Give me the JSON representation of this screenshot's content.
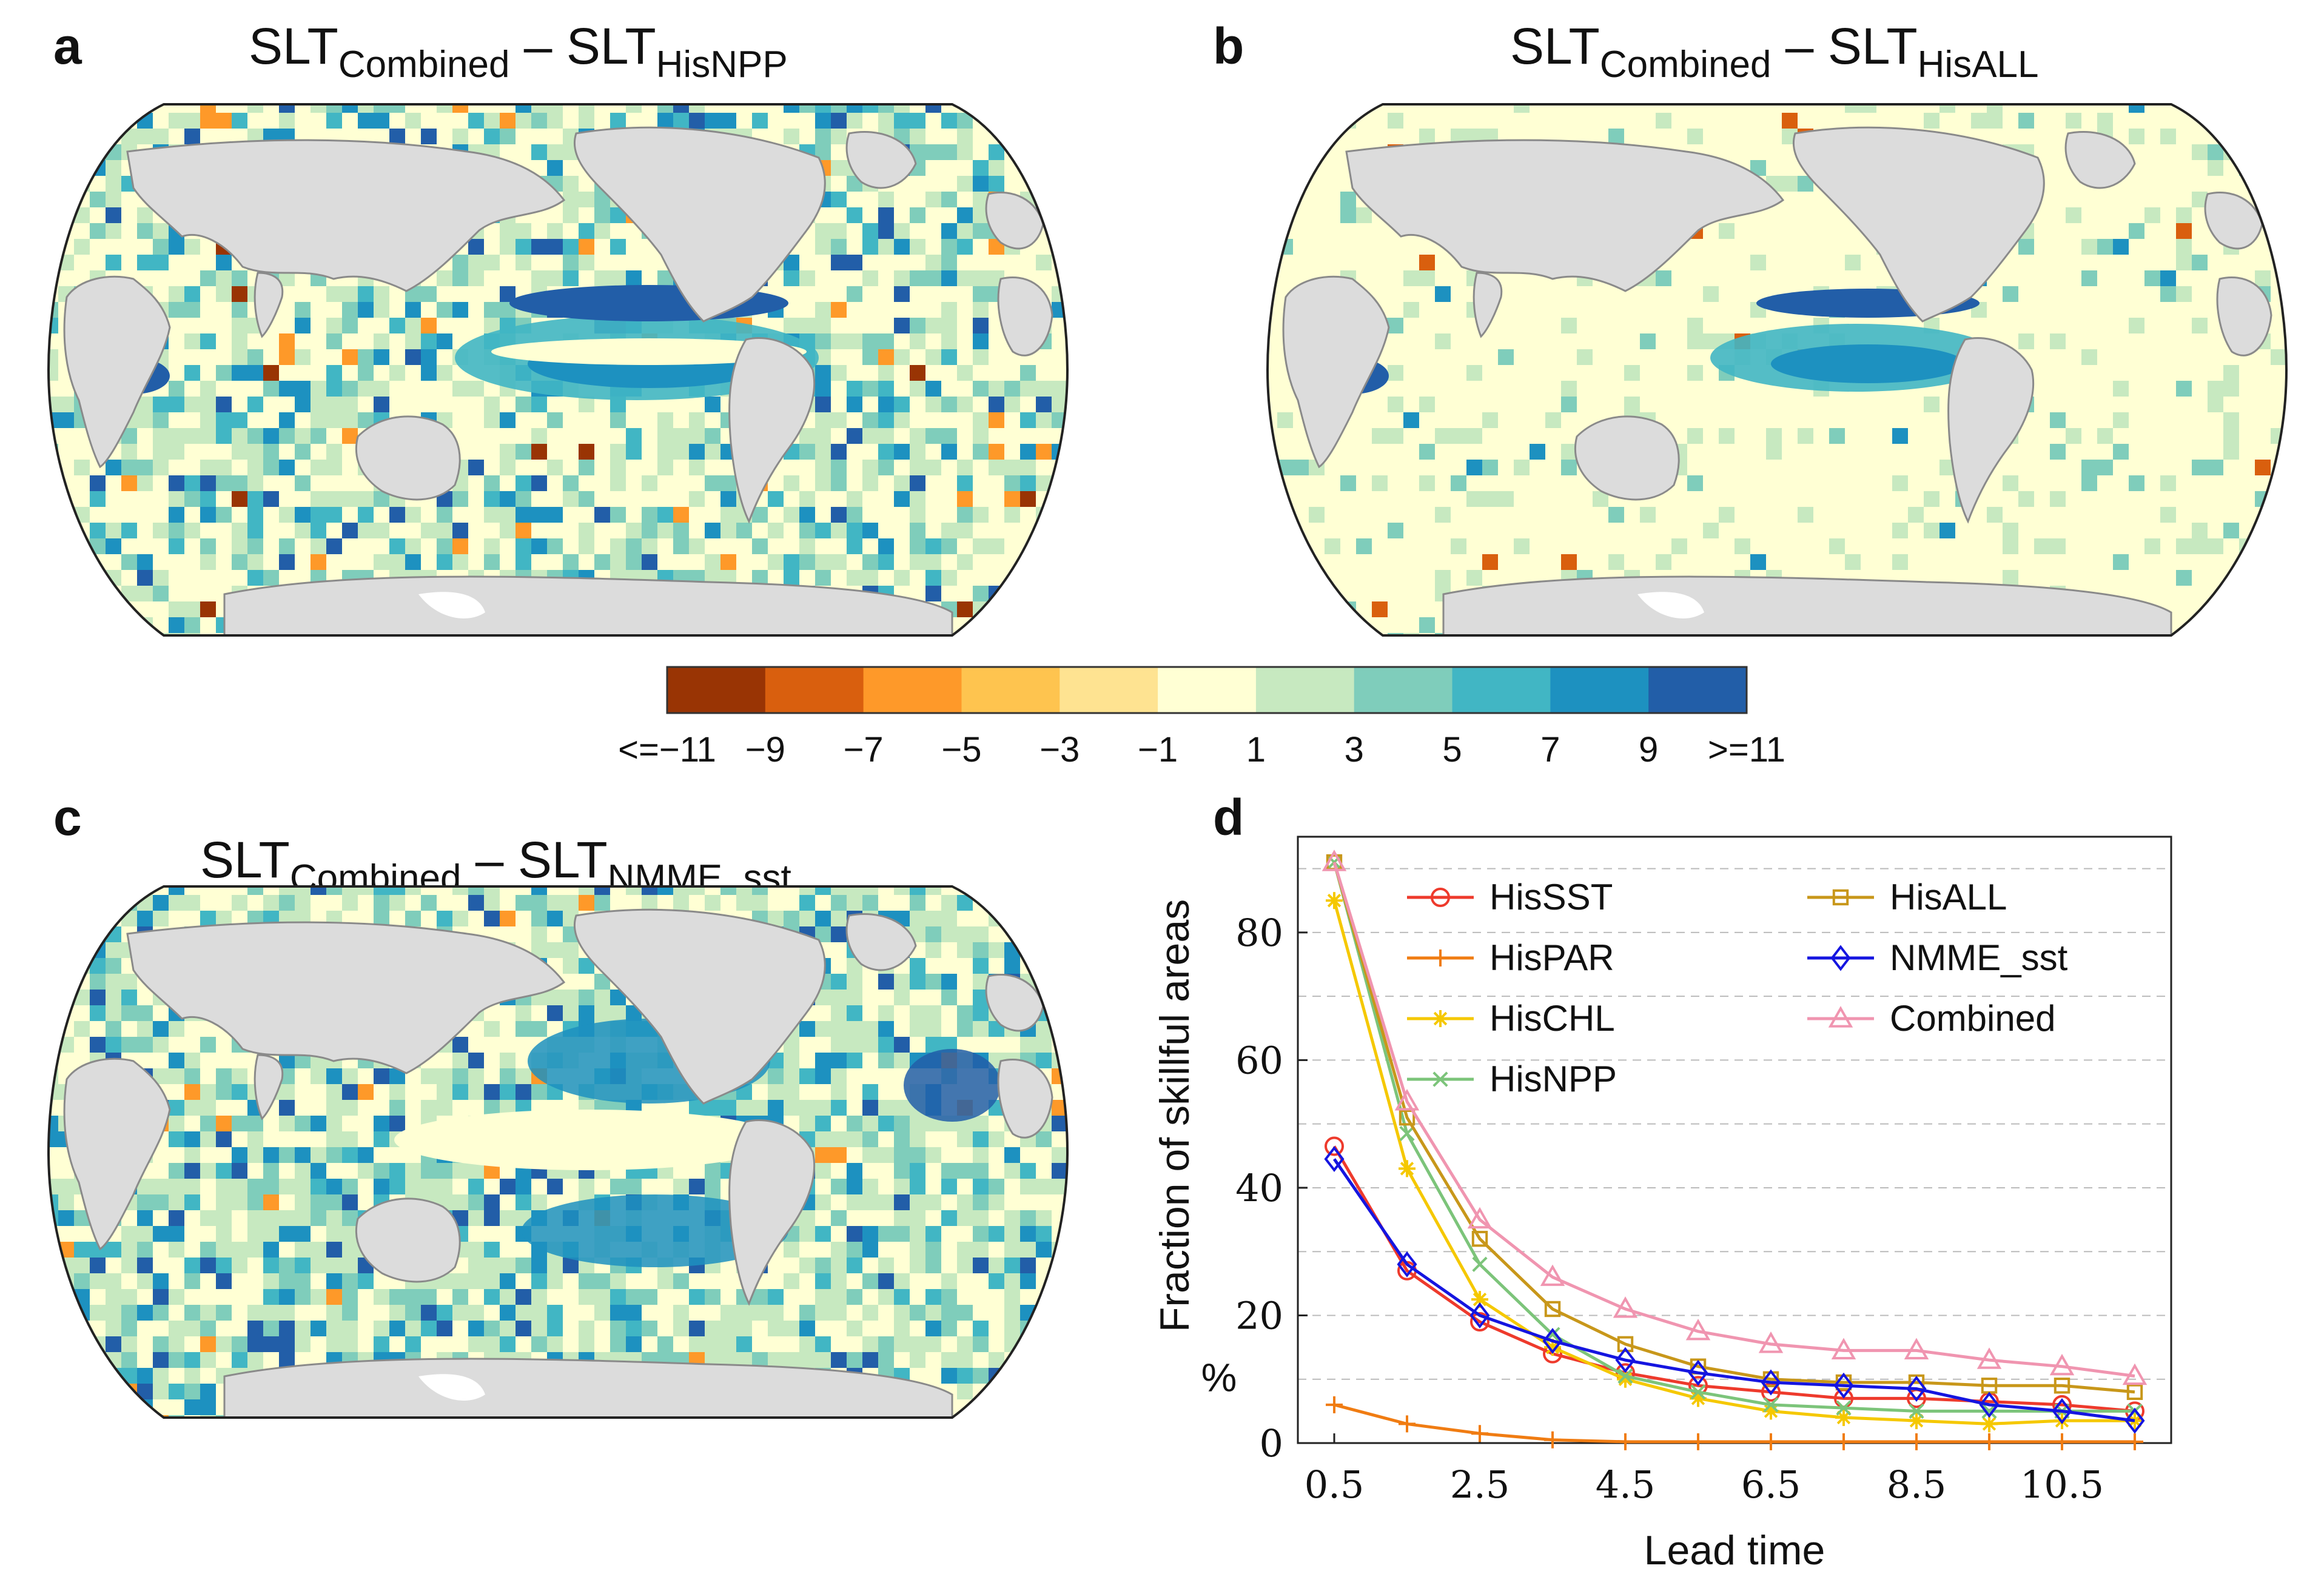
{
  "panels": {
    "a": {
      "letter": "a",
      "title_main": "SLT",
      "title_sub1": "Combined",
      "title_dash": " – SLT",
      "title_sub2": "HisNPP"
    },
    "b": {
      "letter": "b",
      "title_main": "SLT",
      "title_sub1": "Combined",
      "title_dash": " – SLT",
      "title_sub2": "HisALL"
    },
    "c": {
      "letter": "c",
      "title_main": "SLT",
      "title_sub1": "Combined",
      "title_dash": " – SLT",
      "title_sub2": "NMME_sst"
    },
    "d": {
      "letter": "d"
    }
  },
  "colorbar": {
    "colors": [
      "#993404",
      "#d95f0e",
      "#fe9929",
      "#fec44f",
      "#fee391",
      "#ffffd4",
      "#c7e9c0",
      "#7fcdbb",
      "#41b6c4",
      "#1d91c0",
      "#225ea8"
    ],
    "labels": [
      "<=−11",
      "−9",
      "−7",
      "−5",
      "−3",
      "−1",
      "1",
      "3",
      "5",
      "7",
      "9",
      ">=11"
    ]
  },
  "map_colors": {
    "land": "#dcdcdc",
    "coast": "#8a8a8a",
    "ice": "#ffffff"
  },
  "chart_data": {
    "type": "line",
    "x": [
      0.5,
      1.5,
      2.5,
      3.5,
      4.5,
      5.5,
      6.5,
      7.5,
      8.5,
      9.5,
      10.5,
      11.5
    ],
    "xticks": [
      "0.5",
      "2.5",
      "4.5",
      "6.5",
      "8.5",
      "10.5"
    ],
    "xtick_values": [
      0.5,
      2.5,
      4.5,
      6.5,
      8.5,
      10.5
    ],
    "yticks": [
      "0",
      "20",
      "40",
      "60",
      "80"
    ],
    "ytick_values": [
      0,
      20,
      40,
      60,
      80
    ],
    "xlim": [
      0,
      12
    ],
    "ylim": [
      0,
      95
    ],
    "xlabel": "Lead time",
    "ylabel": "Fraction of skillful areas",
    "yunit": "%",
    "grid": "horizontal dashed",
    "legend_position": "top-right",
    "series": [
      {
        "name": "HisSST",
        "color": "#ee3a2c",
        "marker": "circle",
        "values": [
          46.5,
          27.0,
          19.0,
          14.0,
          11.0,
          9.0,
          8.0,
          7.0,
          7.0,
          6.5,
          6.0,
          5.0
        ]
      },
      {
        "name": "HisPAR",
        "color": "#f07c12",
        "marker": "plus",
        "values": [
          6.0,
          3.0,
          1.5,
          0.5,
          0.2,
          0.2,
          0.2,
          0.2,
          0.2,
          0.2,
          0.2,
          0.2
        ]
      },
      {
        "name": "HisCHL",
        "color": "#f5c800",
        "marker": "star",
        "values": [
          85.0,
          43.0,
          22.5,
          15.0,
          10.0,
          7.0,
          5.0,
          4.0,
          3.5,
          3.0,
          3.5,
          3.5
        ]
      },
      {
        "name": "HisNPP",
        "color": "#7cc47a",
        "marker": "x",
        "values": [
          91.0,
          48.5,
          28.0,
          17.0,
          10.5,
          8.0,
          6.0,
          5.5,
          5.0,
          5.0,
          5.0,
          5.0
        ]
      },
      {
        "name": "HisALL",
        "color": "#c8971a",
        "marker": "square",
        "values": [
          91.0,
          51.0,
          32.0,
          21.0,
          15.5,
          12.0,
          10.0,
          9.5,
          9.5,
          9.0,
          9.0,
          8.0
        ]
      },
      {
        "name": "NMME_sst",
        "color": "#1515e0",
        "marker": "diamond",
        "values": [
          44.5,
          28.0,
          20.0,
          16.0,
          13.0,
          11.0,
          9.5,
          9.0,
          8.5,
          6.0,
          5.0,
          3.5
        ]
      },
      {
        "name": "Combined",
        "color": "#f095b0",
        "marker": "triangle",
        "values": [
          91.0,
          53.5,
          35.0,
          26.0,
          21.0,
          17.5,
          15.5,
          14.5,
          14.5,
          13.0,
          12.0,
          10.5
        ]
      }
    ]
  }
}
